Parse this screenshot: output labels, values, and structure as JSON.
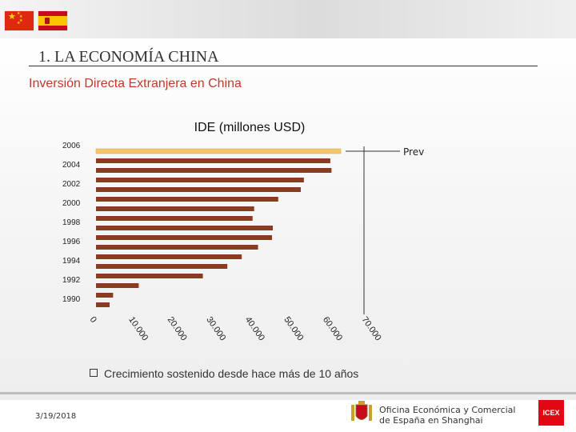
{
  "header": {
    "section_title": "1. LA ECONOMÍA CHINA",
    "subtitle": "Inversión Directa Extranjera en China"
  },
  "chart_data": {
    "type": "bar",
    "orientation": "horizontal",
    "title": "IDE (millones USD)",
    "x": [
      "1990",
      "1991",
      "1992",
      "1993",
      "1994",
      "1995",
      "1996",
      "1997",
      "1998",
      "1999",
      "2000",
      "2001",
      "2002",
      "2003",
      "2004",
      "2005",
      "2006"
    ],
    "y_tick_labels": [
      "1990",
      "1992",
      "1994",
      "1996",
      "1998",
      "2000",
      "2002",
      "2004",
      "2006"
    ],
    "values": [
      3500,
      4400,
      11000,
      27500,
      33800,
      37500,
      41700,
      45300,
      45500,
      40300,
      40700,
      46900,
      52700,
      53500,
      60600,
      60300,
      63000
    ],
    "highlight": {
      "category": "2006",
      "color": "#f3c66b",
      "annotation": "Previsto"
    },
    "bar_color": "#8c3b20",
    "xlim": [
      0,
      70000
    ],
    "x_ticks": [
      0,
      10000,
      20000,
      30000,
      40000,
      50000,
      60000,
      70000
    ],
    "x_tick_labels": [
      "0",
      "10.000",
      "20.000",
      "30.000",
      "40.000",
      "50.000",
      "60.000",
      "70.000"
    ]
  },
  "bullet": {
    "text": "Crecimiento sostenido desde hace más de 10 años"
  },
  "footer": {
    "date": "3/19/2018",
    "office_line1": "Oficina Económica y Comercial",
    "office_line2": "de España en Shanghai",
    "logo_text": "ICEX"
  }
}
